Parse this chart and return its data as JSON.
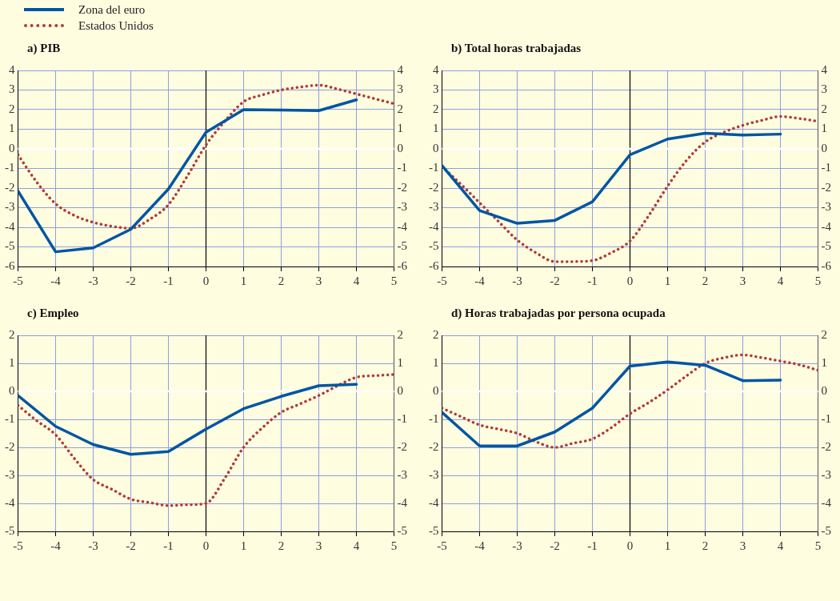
{
  "chart_data": [
    {
      "type": "line",
      "title": "a) PIB",
      "legend": "top left",
      "marker": "none",
      "grid": true,
      "xlim": [
        -5,
        5
      ],
      "xticks": [
        -5,
        -4,
        -3,
        -2,
        -1,
        0,
        1,
        2,
        3,
        4,
        5
      ],
      "ylim": [
        -6,
        4
      ],
      "yticks": [
        -6,
        -5,
        -4,
        -3,
        -2,
        -1,
        0,
        1,
        2,
        3,
        4
      ],
      "y2lim": [
        -6,
        4
      ],
      "y2ticks": [
        -6,
        -5,
        -4,
        -3,
        -2,
        -1,
        0,
        1,
        2,
        3,
        4
      ],
      "ref_lines": [
        {
          "axis": "x",
          "value": 0,
          "color": "#000000"
        },
        {
          "axis": "y",
          "value": 0,
          "color": "#ffffff"
        }
      ],
      "series": [
        {
          "name": "Zona del euro",
          "color": "#0055a4",
          "line_style": "solid",
          "x": [
            -5,
            -4,
            -3,
            -2,
            -1,
            0,
            1,
            2,
            3,
            4
          ],
          "values": [
            -2.15,
            -5.25,
            -5.05,
            -4.1,
            -2.05,
            0.85,
            2.0,
            1.98,
            1.95,
            2.5
          ]
        },
        {
          "name": "Estados Unidos",
          "color": "#b03a3a",
          "line_style": "dotted",
          "x": [
            -5,
            -4.5,
            -4,
            -3.5,
            -3,
            -2.5,
            -2,
            -1.5,
            -1,
            -0.5,
            0,
            0.5,
            1,
            1.5,
            2,
            2.5,
            3,
            3.5,
            4,
            4.5,
            5
          ],
          "values": [
            -0.3,
            -1.7,
            -2.8,
            -3.4,
            -3.75,
            -3.95,
            -4.05,
            -3.6,
            -2.85,
            -1.4,
            0.2,
            1.4,
            2.4,
            2.75,
            3.0,
            3.15,
            3.25,
            3.05,
            2.8,
            2.55,
            2.3
          ]
        }
      ]
    },
    {
      "type": "line",
      "title": "b) Total horas trabajadas",
      "marker": "none",
      "grid": true,
      "xlim": [
        -5,
        5
      ],
      "xticks": [
        -5,
        -4,
        -3,
        -2,
        -1,
        0,
        1,
        2,
        3,
        4,
        5
      ],
      "ylim": [
        -6,
        4
      ],
      "yticks": [
        -6,
        -5,
        -4,
        -3,
        -2,
        -1,
        0,
        1,
        2,
        3,
        4
      ],
      "y2lim": [
        -6,
        4
      ],
      "y2ticks": [
        -6,
        -5,
        -4,
        -3,
        -2,
        -1,
        0,
        1,
        2,
        3,
        4
      ],
      "ref_lines": [
        {
          "axis": "x",
          "value": 0,
          "color": "#000000"
        },
        {
          "axis": "y",
          "value": 0,
          "color": "#ffffff"
        }
      ],
      "series": [
        {
          "color": "#0055a4",
          "line_style": "solid",
          "x": [
            -5,
            -4,
            -3,
            -2,
            -1,
            0,
            1,
            2,
            3,
            4
          ],
          "values": [
            -0.85,
            -3.15,
            -3.8,
            -3.65,
            -2.7,
            -0.3,
            0.5,
            0.8,
            0.7,
            0.75
          ]
        },
        {
          "color": "#b03a3a",
          "line_style": "dotted",
          "x": [
            -5,
            -4.5,
            -4,
            -3.5,
            -3,
            -2.5,
            -2,
            -1.5,
            -1,
            -0.5,
            0,
            0.5,
            1,
            1.5,
            2,
            2.5,
            3,
            3.5,
            4,
            4.5,
            5
          ],
          "values": [
            -0.9,
            -1.8,
            -2.75,
            -3.7,
            -4.65,
            -5.3,
            -5.75,
            -5.75,
            -5.7,
            -5.3,
            -4.7,
            -3.4,
            -1.9,
            -0.6,
            0.35,
            0.85,
            1.2,
            1.45,
            1.65,
            1.55,
            1.4
          ]
        }
      ]
    },
    {
      "type": "line",
      "title": "c) Empleo",
      "marker": "none",
      "grid": true,
      "xlim": [
        -5,
        5
      ],
      "xticks": [
        -5,
        -4,
        -3,
        -2,
        -1,
        0,
        1,
        2,
        3,
        4,
        5
      ],
      "ylim": [
        -5,
        2
      ],
      "yticks": [
        -5,
        -4,
        -3,
        -2,
        -1,
        0,
        1,
        2
      ],
      "y2lim": [
        -5,
        2
      ],
      "y2ticks": [
        -5,
        -4,
        -3,
        -2,
        -1,
        0,
        1,
        2
      ],
      "ref_lines": [
        {
          "axis": "x",
          "value": 0,
          "color": "#000000"
        },
        {
          "axis": "y",
          "value": 0,
          "color": "#ffffff"
        }
      ],
      "series": [
        {
          "color": "#0055a4",
          "line_style": "solid",
          "x": [
            -5,
            -4,
            -3,
            -2,
            -1,
            0,
            1,
            2,
            3,
            4
          ],
          "values": [
            -0.15,
            -1.25,
            -1.9,
            -2.25,
            -2.15,
            -1.35,
            -0.62,
            -0.18,
            0.2,
            0.25
          ]
        },
        {
          "color": "#b03a3a",
          "line_style": "dotted",
          "x": [
            -5,
            -4.5,
            -4,
            -3.5,
            -3,
            -2.5,
            -2,
            -1.5,
            -1,
            -0.5,
            0,
            0.5,
            1,
            1.5,
            2,
            2.5,
            3,
            3.5,
            4,
            4.5,
            5
          ],
          "values": [
            -0.5,
            -1.05,
            -1.55,
            -2.4,
            -3.15,
            -3.5,
            -3.85,
            -3.97,
            -4.08,
            -4.05,
            -4.0,
            -3.1,
            -2.0,
            -1.3,
            -0.75,
            -0.45,
            -0.15,
            0.2,
            0.5,
            0.56,
            0.6
          ]
        }
      ]
    },
    {
      "type": "line",
      "title": "d) Horas trabajadas por persona ocupada",
      "marker": "none",
      "grid": true,
      "xlim": [
        -5,
        5
      ],
      "xticks": [
        -5,
        -4,
        -3,
        -2,
        -1,
        0,
        1,
        2,
        3,
        4,
        5
      ],
      "ylim": [
        -5,
        2
      ],
      "yticks": [
        -5,
        -4,
        -3,
        -2,
        -1,
        0,
        1,
        2
      ],
      "y2lim": [
        -5,
        2
      ],
      "y2ticks": [
        -5,
        -4,
        -3,
        -2,
        -1,
        0,
        1,
        2
      ],
      "ref_lines": [
        {
          "axis": "x",
          "value": 0,
          "color": "#000000"
        },
        {
          "axis": "y",
          "value": 0,
          "color": "#ffffff"
        }
      ],
      "series": [
        {
          "color": "#0055a4",
          "line_style": "solid",
          "x": [
            -5,
            -4,
            -3,
            -2,
            -1,
            0,
            1,
            2,
            3,
            4
          ],
          "values": [
            -0.75,
            -1.95,
            -1.95,
            -1.45,
            -0.6,
            0.9,
            1.05,
            0.93,
            0.38,
            0.4
          ]
        },
        {
          "color": "#b03a3a",
          "line_style": "dotted",
          "x": [
            -5,
            -4.5,
            -4,
            -3.5,
            -3,
            -2.5,
            -2,
            -1.5,
            -1,
            -0.5,
            0,
            0.5,
            1,
            1.5,
            2,
            2.5,
            3,
            3.5,
            4,
            4.5,
            5
          ],
          "values": [
            -0.6,
            -0.9,
            -1.2,
            -1.35,
            -1.5,
            -1.8,
            -2.0,
            -1.85,
            -1.7,
            -1.3,
            -0.8,
            -0.4,
            0.05,
            0.55,
            1.0,
            1.2,
            1.3,
            1.2,
            1.08,
            0.95,
            0.75
          ]
        }
      ]
    }
  ]
}
